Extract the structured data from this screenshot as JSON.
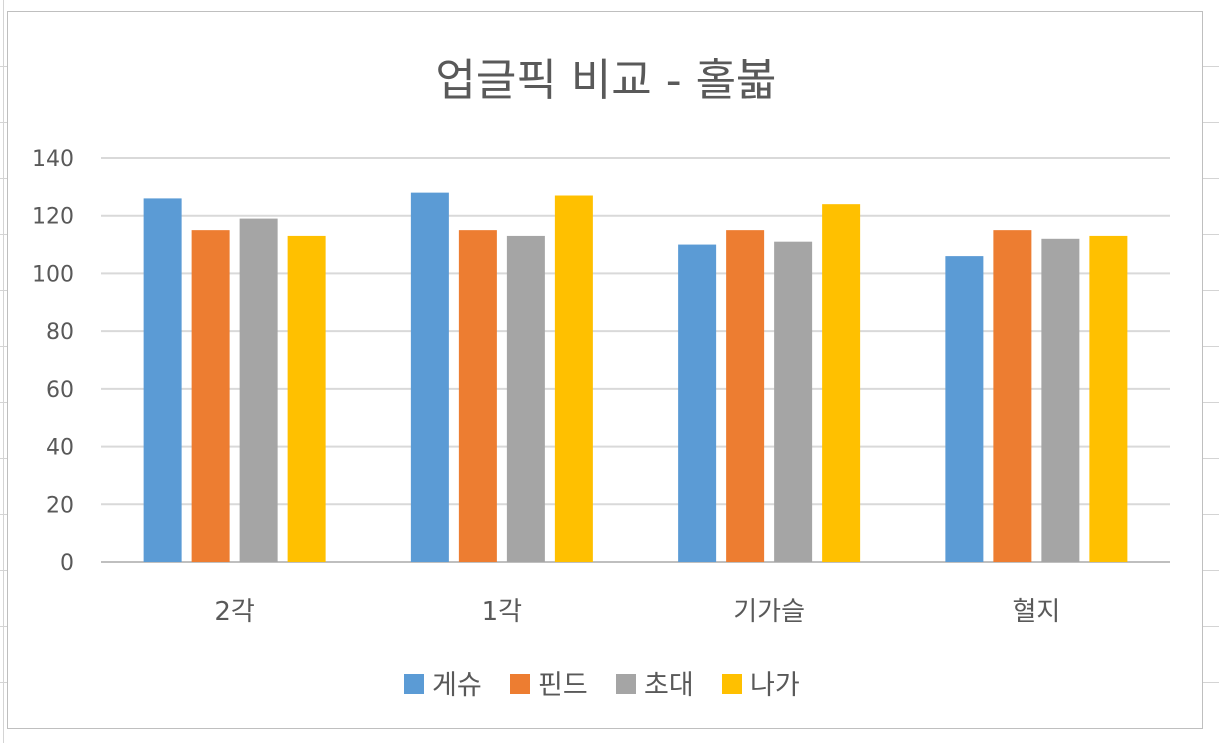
{
  "chart_data": {
    "type": "bar",
    "title": "업글픽 비교 - 홀볿",
    "categories": [
      "2각",
      "1각",
      "기가슬",
      "혈지"
    ],
    "series": [
      {
        "name": "게슈",
        "color": "#5B9BD5",
        "values": [
          126,
          128,
          110,
          106
        ]
      },
      {
        "name": "핀드",
        "color": "#ED7D31",
        "values": [
          115,
          115,
          115,
          115
        ]
      },
      {
        "name": "초대",
        "color": "#A5A5A5",
        "values": [
          119,
          113,
          111,
          112
        ]
      },
      {
        "name": "나가",
        "color": "#FFC000",
        "values": [
          113,
          127,
          124,
          113
        ]
      }
    ],
    "ylim": [
      0,
      140
    ],
    "yticks": [
      0,
      20,
      40,
      60,
      80,
      100,
      120,
      140
    ],
    "grid": true,
    "legend_position": "bottom"
  }
}
